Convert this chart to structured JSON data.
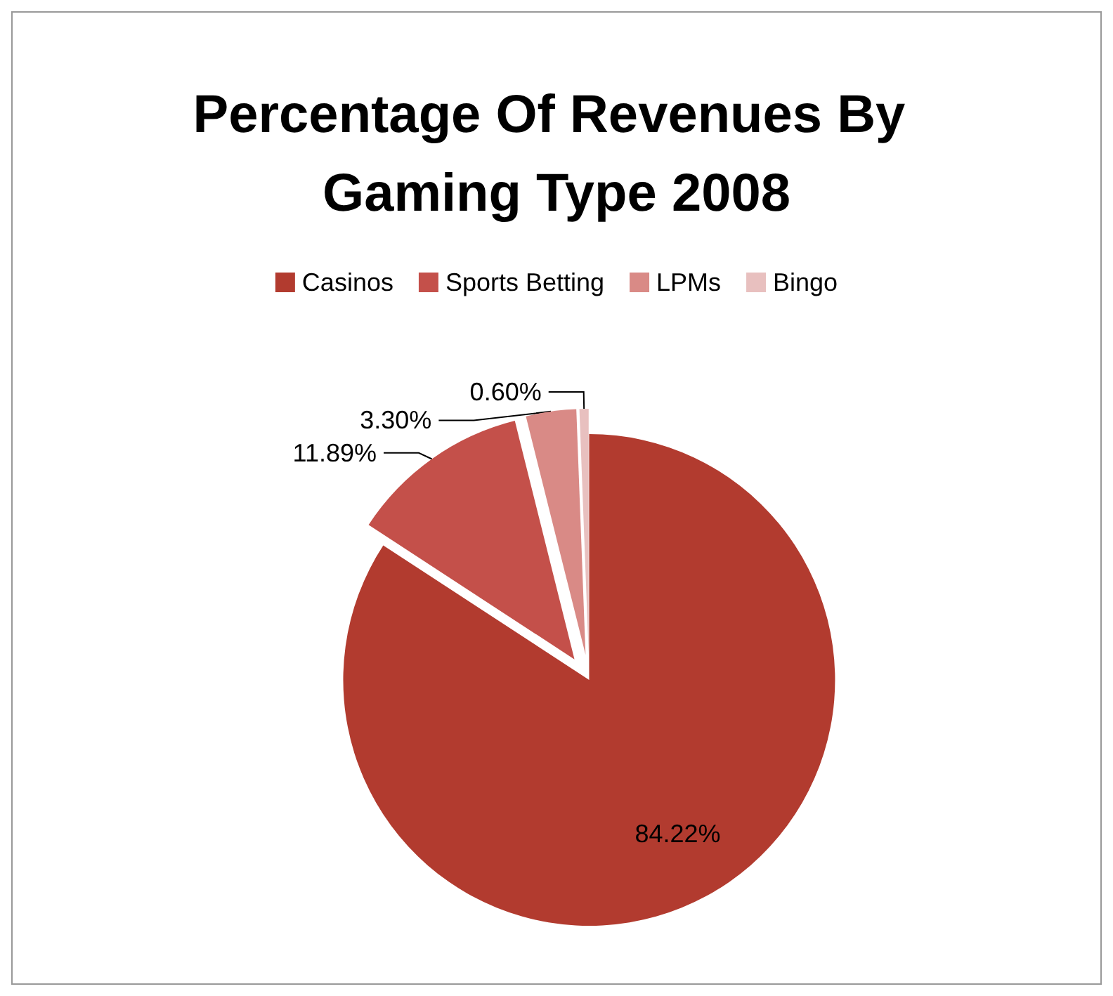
{
  "chart_data": {
    "type": "pie",
    "title": "Percentage Of Revenues By Gaming Type 2008",
    "categories": [
      "Casinos",
      "Sports Betting",
      "LPMs",
      "Bingo"
    ],
    "values": [
      84.22,
      11.89,
      3.3,
      0.6
    ],
    "value_labels": [
      "84.22%",
      "11.89%",
      "3.30%",
      "0.60%"
    ],
    "colors": [
      "#b23b2f",
      "#c4504a",
      "#d98a86",
      "#e8c0bf"
    ],
    "legend": "top"
  }
}
